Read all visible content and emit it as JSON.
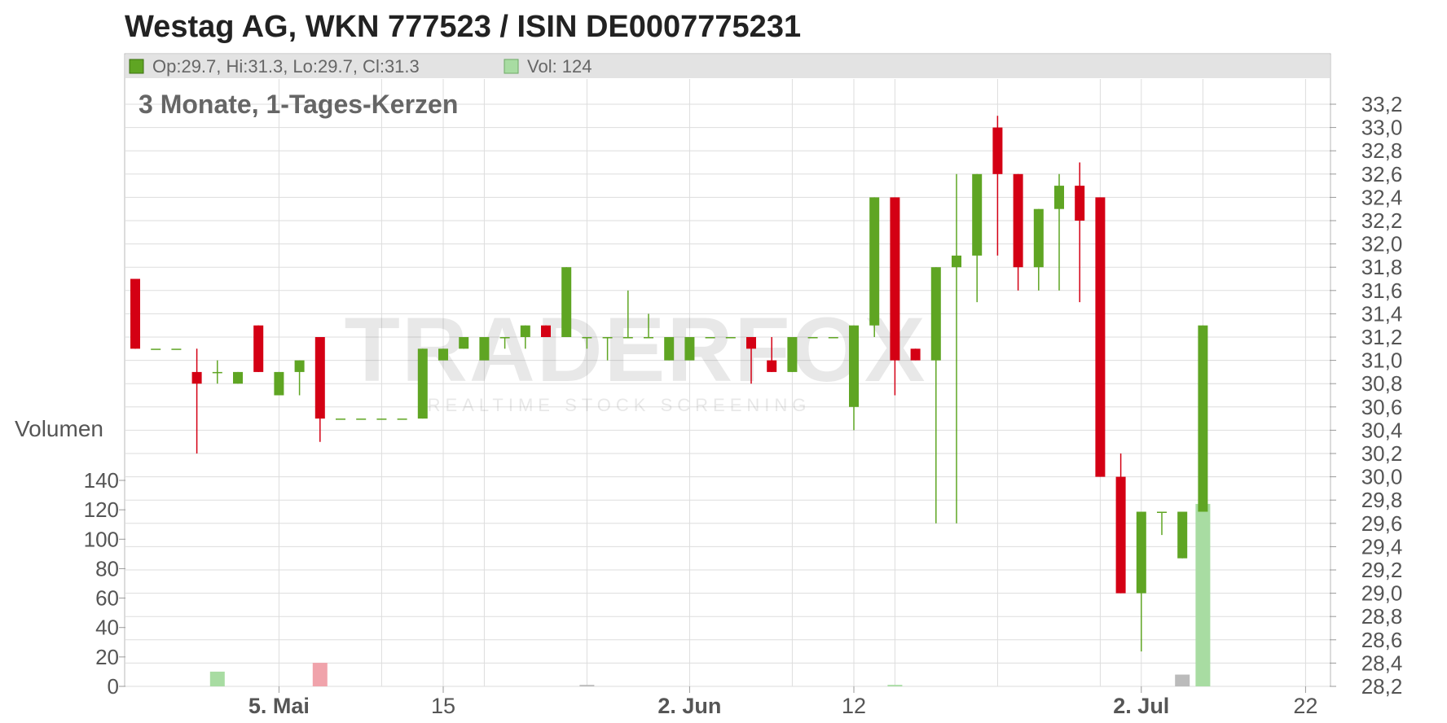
{
  "title": "Westag AG, WKN 777523 / ISIN DE0007775231",
  "ohlc_label": "Op:29.7, Hi:31.3, Lo:29.7, Cl:31.3",
  "vol_label": "Vol: 124",
  "subtitle": "3 Monate, 1-Tages-Kerzen",
  "volume_axis_title": "Volumen",
  "watermark": {
    "brand": "TRADERFOX",
    "tagline": "REALTIME STOCK SCREENING"
  },
  "colors": {
    "up": "#5fa523",
    "down": "#d40014",
    "vol_up": "#a8dca2",
    "vol_down": "#f0a3ab",
    "vol_flat": "#bbbbbb",
    "header_bg": "#e3e3e3",
    "grid": "#dddddd"
  },
  "chart_data": {
    "type": "candlestick",
    "price_axis": {
      "ticks": [
        "33,2",
        "33,0",
        "32,8",
        "32,6",
        "32,4",
        "32,2",
        "32,0",
        "31,8",
        "31,6",
        "31,4",
        "31,2",
        "31,0",
        "30,8",
        "30,6",
        "30,4",
        "30,2",
        "30,0",
        "29,8",
        "29,6",
        "29,4",
        "29,2",
        "29,0",
        "28,8",
        "28,6",
        "28,4",
        "28,2"
      ],
      "range": [
        28.2,
        33.2
      ],
      "side": "right"
    },
    "volume_axis": {
      "ticks": [
        "140",
        "120",
        "100",
        "80",
        "60",
        "40",
        "20",
        "0"
      ],
      "range": [
        0,
        140
      ],
      "side": "left"
    },
    "x_axis": {
      "labels": [
        {
          "text": "5. Mai",
          "bold": true,
          "i": 7
        },
        {
          "text": "15",
          "bold": false,
          "i": 15
        },
        {
          "text": "2. Jun",
          "bold": true,
          "i": 27
        },
        {
          "text": "12",
          "bold": false,
          "i": 35
        },
        {
          "text": "2. Jul",
          "bold": true,
          "i": 49
        },
        {
          "text": "22",
          "bold": false,
          "i": 57
        }
      ]
    },
    "candles": [
      {
        "i": 0,
        "o": 31.7,
        "h": 31.7,
        "l": 31.1,
        "c": 31.1
      },
      {
        "i": 1,
        "o": 31.1,
        "h": 31.1,
        "l": 31.1,
        "c": 31.1
      },
      {
        "i": 2,
        "o": 31.1,
        "h": 31.1,
        "l": 31.1,
        "c": 31.1
      },
      {
        "i": 3,
        "o": 30.9,
        "h": 31.1,
        "l": 30.2,
        "c": 30.8
      },
      {
        "i": 4,
        "o": 30.9,
        "h": 31.0,
        "l": 30.8,
        "c": 30.9
      },
      {
        "i": 5,
        "o": 30.8,
        "h": 30.9,
        "l": 30.8,
        "c": 30.9
      },
      {
        "i": 6,
        "o": 31.3,
        "h": 31.3,
        "l": 30.9,
        "c": 30.9
      },
      {
        "i": 7,
        "o": 30.7,
        "h": 30.9,
        "l": 30.7,
        "c": 30.9
      },
      {
        "i": 8,
        "o": 30.9,
        "h": 31.0,
        "l": 30.7,
        "c": 31.0
      },
      {
        "i": 9,
        "o": 31.2,
        "h": 31.2,
        "l": 30.3,
        "c": 30.5
      },
      {
        "i": 10,
        "o": 30.5,
        "h": 30.5,
        "l": 30.5,
        "c": 30.5
      },
      {
        "i": 11,
        "o": 30.5,
        "h": 30.5,
        "l": 30.5,
        "c": 30.5
      },
      {
        "i": 12,
        "o": 30.5,
        "h": 30.5,
        "l": 30.5,
        "c": 30.5
      },
      {
        "i": 13,
        "o": 30.5,
        "h": 30.5,
        "l": 30.5,
        "c": 30.5
      },
      {
        "i": 14,
        "o": 30.5,
        "h": 31.1,
        "l": 30.5,
        "c": 31.1
      },
      {
        "i": 15,
        "o": 31.0,
        "h": 31.1,
        "l": 31.0,
        "c": 31.1
      },
      {
        "i": 16,
        "o": 31.1,
        "h": 31.2,
        "l": 31.1,
        "c": 31.2
      },
      {
        "i": 17,
        "o": 31.0,
        "h": 31.2,
        "l": 31.0,
        "c": 31.2
      },
      {
        "i": 18,
        "o": 31.2,
        "h": 31.2,
        "l": 31.1,
        "c": 31.2
      },
      {
        "i": 19,
        "o": 31.2,
        "h": 31.3,
        "l": 31.1,
        "c": 31.3
      },
      {
        "i": 20,
        "o": 31.3,
        "h": 31.3,
        "l": 31.2,
        "c": 31.2
      },
      {
        "i": 21,
        "o": 31.2,
        "h": 31.8,
        "l": 31.2,
        "c": 31.8
      },
      {
        "i": 22,
        "o": 31.2,
        "h": 31.2,
        "l": 31.1,
        "c": 31.2
      },
      {
        "i": 23,
        "o": 31.2,
        "h": 31.2,
        "l": 31.0,
        "c": 31.2
      },
      {
        "i": 24,
        "o": 31.2,
        "h": 31.6,
        "l": 31.2,
        "c": 31.2
      },
      {
        "i": 25,
        "o": 31.2,
        "h": 31.4,
        "l": 31.2,
        "c": 31.2
      },
      {
        "i": 26,
        "o": 31.0,
        "h": 31.2,
        "l": 31.0,
        "c": 31.2
      },
      {
        "i": 27,
        "o": 31.0,
        "h": 31.2,
        "l": 31.0,
        "c": 31.2
      },
      {
        "i": 28,
        "o": 31.2,
        "h": 31.2,
        "l": 31.2,
        "c": 31.2
      },
      {
        "i": 29,
        "o": 31.2,
        "h": 31.2,
        "l": 31.2,
        "c": 31.2
      },
      {
        "i": 30,
        "o": 31.2,
        "h": 31.2,
        "l": 30.8,
        "c": 31.1
      },
      {
        "i": 31,
        "o": 31.0,
        "h": 31.2,
        "l": 30.9,
        "c": 30.9
      },
      {
        "i": 32,
        "o": 30.9,
        "h": 31.2,
        "l": 30.9,
        "c": 31.2
      },
      {
        "i": 33,
        "o": 31.2,
        "h": 31.2,
        "l": 31.2,
        "c": 31.2
      },
      {
        "i": 34,
        "o": 31.2,
        "h": 31.2,
        "l": 31.2,
        "c": 31.2
      },
      {
        "i": 35,
        "o": 30.6,
        "h": 31.3,
        "l": 30.4,
        "c": 31.3
      },
      {
        "i": 36,
        "o": 31.3,
        "h": 32.4,
        "l": 31.2,
        "c": 32.4
      },
      {
        "i": 37,
        "o": 32.4,
        "h": 32.4,
        "l": 30.7,
        "c": 31.0
      },
      {
        "i": 38,
        "o": 31.1,
        "h": 31.1,
        "l": 31.0,
        "c": 31.0
      },
      {
        "i": 39,
        "o": 31.0,
        "h": 31.8,
        "l": 29.6,
        "c": 31.8
      },
      {
        "i": 40,
        "o": 31.8,
        "h": 32.6,
        "l": 29.6,
        "c": 31.9
      },
      {
        "i": 41,
        "o": 31.9,
        "h": 32.6,
        "l": 31.5,
        "c": 32.6
      },
      {
        "i": 42,
        "o": 33.0,
        "h": 33.1,
        "l": 31.9,
        "c": 32.6
      },
      {
        "i": 43,
        "o": 32.6,
        "h": 32.6,
        "l": 31.6,
        "c": 31.8
      },
      {
        "i": 44,
        "o": 31.8,
        "h": 32.3,
        "l": 31.6,
        "c": 32.3
      },
      {
        "i": 45,
        "o": 32.3,
        "h": 32.6,
        "l": 31.6,
        "c": 32.5
      },
      {
        "i": 46,
        "o": 32.5,
        "h": 32.7,
        "l": 31.5,
        "c": 32.2
      },
      {
        "i": 47,
        "o": 32.4,
        "h": 32.4,
        "l": 30.0,
        "c": 30.0
      },
      {
        "i": 48,
        "o": 30.0,
        "h": 30.2,
        "l": 29.0,
        "c": 29.0
      },
      {
        "i": 49,
        "o": 29.0,
        "h": 29.7,
        "l": 28.5,
        "c": 29.7
      },
      {
        "i": 50,
        "o": 29.7,
        "h": 29.7,
        "l": 29.5,
        "c": 29.7
      },
      {
        "i": 51,
        "o": 29.3,
        "h": 29.7,
        "l": 29.3,
        "c": 29.7
      },
      {
        "i": 52,
        "o": 29.7,
        "h": 31.3,
        "l": 29.7,
        "c": 31.3
      }
    ],
    "volumes": [
      {
        "i": 4,
        "v": 10,
        "kind": "up"
      },
      {
        "i": 9,
        "v": 16,
        "kind": "down"
      },
      {
        "i": 22,
        "v": 1,
        "kind": "flat"
      },
      {
        "i": 37,
        "v": 1,
        "kind": "up"
      },
      {
        "i": 51,
        "v": 8,
        "kind": "flat"
      },
      {
        "i": 52,
        "v": 124,
        "kind": "up"
      }
    ]
  }
}
